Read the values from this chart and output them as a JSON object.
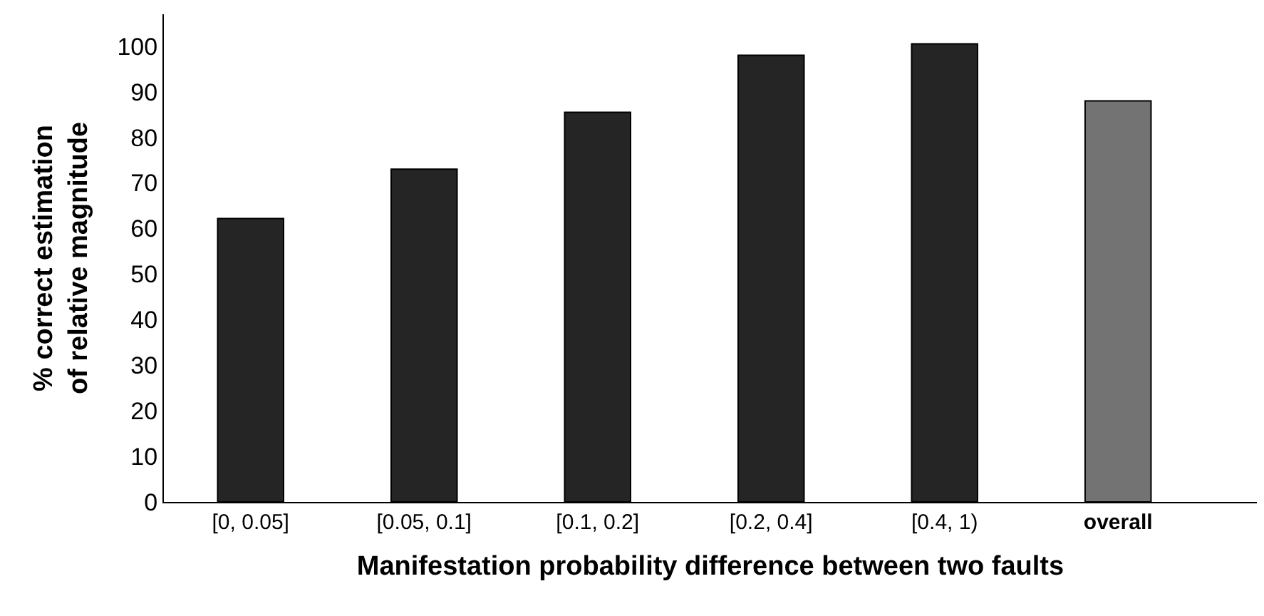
{
  "chart_data": {
    "type": "bar",
    "xlabel": "Manifestation probability difference between two faults",
    "ylabel": "% correct estimation\nof relative magnitude",
    "categories": [
      "[0, 0.05]",
      "[0.05, 0.1]",
      "[0.1, 0.2]",
      "[0.2, 0.4]",
      "[0.4, 1)",
      "overall"
    ],
    "values": [
      62.2,
      73,
      85.5,
      98,
      100.5,
      88
    ],
    "colors": [
      "#252525",
      "#252525",
      "#252525",
      "#252525",
      "#252525",
      "#737373"
    ],
    "ylim": [
      0,
      107
    ],
    "yticks": [
      0,
      10,
      20,
      30,
      40,
      50,
      60,
      70,
      80,
      90,
      100
    ],
    "grid": false
  }
}
